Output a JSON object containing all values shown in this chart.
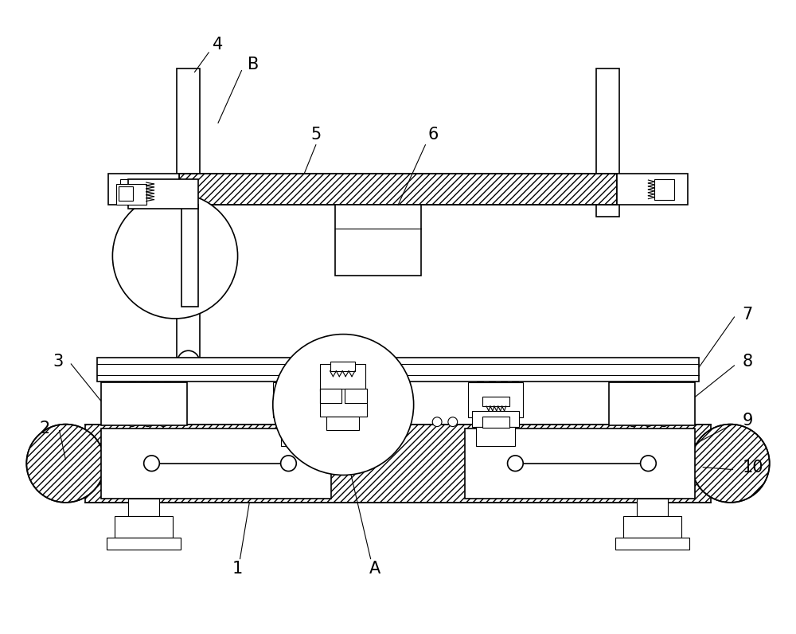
{
  "bg_color": "#ffffff",
  "lw": 1.2,
  "tlw": 0.8,
  "fig_width": 10.0,
  "fig_height": 7.96
}
